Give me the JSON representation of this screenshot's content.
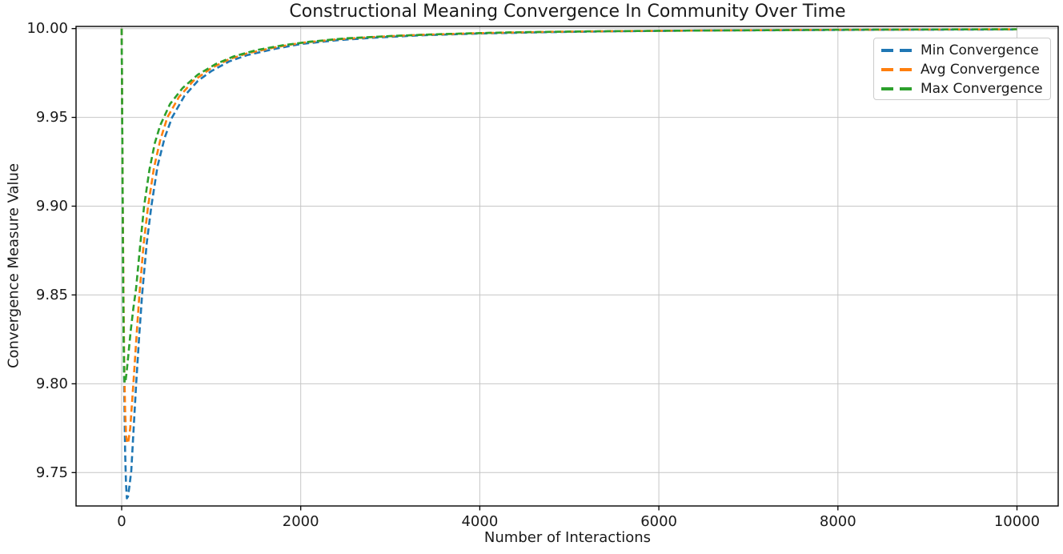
{
  "chart_data": {
    "type": "line",
    "title": "Constructional Meaning Convergence In Community Over Time",
    "xlabel": "Number of Interactions",
    "ylabel": "Convergence Measure Value",
    "xlim": [
      -510,
      10460
    ],
    "ylim": [
      9.7312,
      10.0012
    ],
    "grid": true,
    "legend_position": "upper right",
    "xticks": {
      "values": [
        0,
        2000,
        4000,
        6000,
        8000,
        10000
      ],
      "labels": [
        "0",
        "2000",
        "4000",
        "6000",
        "8000",
        "10000"
      ]
    },
    "yticks": {
      "values": [
        9.75,
        9.8,
        9.85,
        9.9,
        9.95,
        10.0
      ],
      "labels": [
        "9.75",
        "9.80",
        "9.85",
        "9.90",
        "9.95",
        "10.00"
      ]
    },
    "colors": {
      "grid": "#c6c6c6",
      "spine": "#000000",
      "text": "#1a1a1a",
      "legend_border": "#cccccc"
    },
    "series": [
      {
        "name": "Min Convergence",
        "color": "#1f77b4",
        "linestyle": "dashed",
        "points": [
          [
            0,
            10.0
          ],
          [
            6,
            9.945
          ],
          [
            12,
            9.893
          ],
          [
            20,
            9.838
          ],
          [
            28,
            9.796
          ],
          [
            38,
            9.762
          ],
          [
            48,
            9.744
          ],
          [
            58,
            9.7355
          ],
          [
            70,
            9.7365
          ],
          [
            85,
            9.742
          ],
          [
            107,
            9.751
          ],
          [
            135,
            9.776
          ],
          [
            161,
            9.8
          ],
          [
            195,
            9.827
          ],
          [
            228,
            9.85
          ],
          [
            280,
            9.8795
          ],
          [
            331,
            9.9
          ],
          [
            400,
            9.9225
          ],
          [
            480,
            9.9385
          ],
          [
            563,
            9.95
          ],
          [
            700,
            9.962
          ],
          [
            850,
            9.9705
          ],
          [
            1000,
            9.976
          ],
          [
            1200,
            9.9815
          ],
          [
            1400,
            9.985
          ],
          [
            1700,
            9.9885
          ],
          [
            2000,
            9.9913
          ],
          [
            2400,
            9.9934
          ],
          [
            2800,
            9.9948
          ],
          [
            3300,
            9.9961
          ],
          [
            4000,
            9.9972
          ],
          [
            4800,
            9.998
          ],
          [
            5600,
            9.9985
          ],
          [
            6500,
            9.9989
          ],
          [
            7500,
            9.9991
          ],
          [
            8500,
            9.9993
          ],
          [
            10000,
            9.9995
          ]
        ]
      },
      {
        "name": "Avg Convergence",
        "color": "#ff7f0e",
        "linestyle": "dashed",
        "points": [
          [
            0,
            10.0
          ],
          [
            6,
            9.948
          ],
          [
            12,
            9.899
          ],
          [
            20,
            9.849
          ],
          [
            28,
            9.812
          ],
          [
            38,
            9.785
          ],
          [
            50,
            9.7705
          ],
          [
            62,
            9.7665
          ],
          [
            76,
            9.768
          ],
          [
            95,
            9.775
          ],
          [
            130,
            9.8
          ],
          [
            162,
            9.8245
          ],
          [
            197,
            9.85
          ],
          [
            245,
            9.8785
          ],
          [
            295,
            9.9
          ],
          [
            360,
            9.9215
          ],
          [
            430,
            9.937
          ],
          [
            510,
            9.95
          ],
          [
            640,
            9.9615
          ],
          [
            800,
            9.9705
          ],
          [
            1000,
            9.9777
          ],
          [
            1200,
            9.9827
          ],
          [
            1400,
            9.986
          ],
          [
            1700,
            9.9893
          ],
          [
            2000,
            9.9919
          ],
          [
            2400,
            9.9939
          ],
          [
            2800,
            9.9952
          ],
          [
            3300,
            9.9964
          ],
          [
            4000,
            9.9974
          ],
          [
            4800,
            9.9982
          ],
          [
            5600,
            9.9986
          ],
          [
            6500,
            9.9989
          ],
          [
            7500,
            9.9992
          ],
          [
            8500,
            9.9994
          ],
          [
            10000,
            9.9996
          ]
        ]
      },
      {
        "name": "Max Convergence",
        "color": "#2ca02c",
        "linestyle": "dashed",
        "points": [
          [
            0,
            10.0
          ],
          [
            5,
            9.952
          ],
          [
            10,
            9.905
          ],
          [
            16,
            9.858
          ],
          [
            22,
            9.822
          ],
          [
            28,
            9.804
          ],
          [
            34,
            9.8005
          ],
          [
            42,
            9.801
          ],
          [
            55,
            9.8065
          ],
          [
            75,
            9.8165
          ],
          [
            100,
            9.8295
          ],
          [
            130,
            9.8425
          ],
          [
            161,
            9.854
          ],
          [
            200,
            9.8745
          ],
          [
            250,
            9.9
          ],
          [
            310,
            9.9205
          ],
          [
            370,
            9.9355
          ],
          [
            430,
            9.9455
          ],
          [
            540,
            9.9575
          ],
          [
            680,
            9.9665
          ],
          [
            850,
            9.974
          ],
          [
            1050,
            9.98
          ],
          [
            1250,
            9.9843
          ],
          [
            1500,
            9.9878
          ],
          [
            1800,
            9.9906
          ],
          [
            2100,
            9.9926
          ],
          [
            2500,
            9.9945
          ],
          [
            3000,
            9.9958
          ],
          [
            3600,
            9.9969
          ],
          [
            4300,
            9.9978
          ],
          [
            5200,
            9.9984
          ],
          [
            6200,
            9.9988
          ],
          [
            7200,
            9.9991
          ],
          [
            8300,
            9.9994
          ],
          [
            10000,
            9.9996
          ]
        ]
      }
    ]
  }
}
